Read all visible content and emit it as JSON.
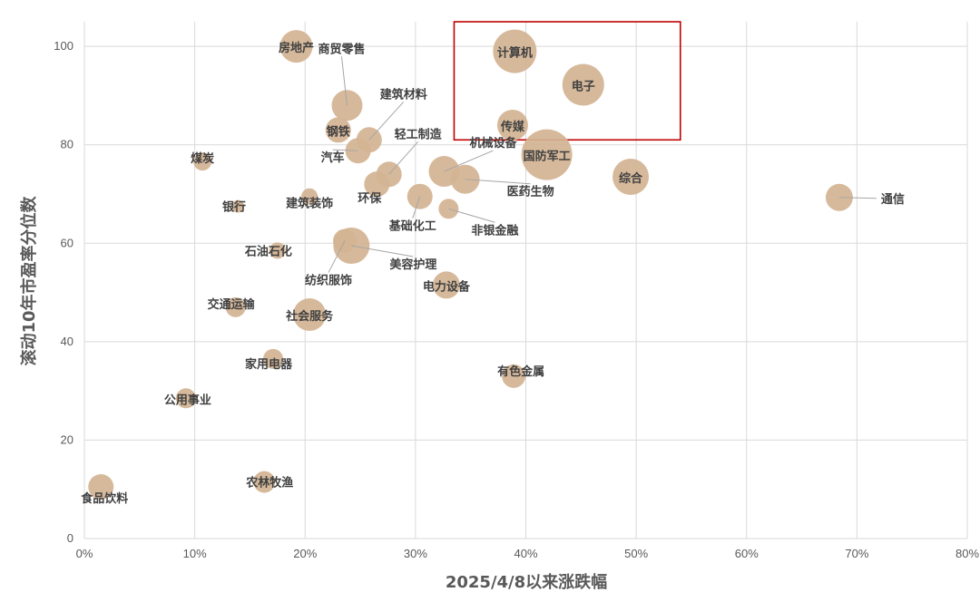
{
  "chart_data": {
    "type": "scatter",
    "xlabel": "2025/4/8以来涨跌幅",
    "ylabel": "滚动10年市盈率分位数",
    "xlim": [
      0,
      80
    ],
    "ylim": [
      0,
      105
    ],
    "xticks": [
      0,
      10,
      20,
      30,
      40,
      50,
      60,
      70,
      80
    ],
    "xtick_labels": [
      "0%",
      "10%",
      "20%",
      "30%",
      "40%",
      "50%",
      "60%",
      "70%",
      "80%"
    ],
    "yticks": [
      0,
      20,
      40,
      60,
      80,
      100
    ],
    "ytick_labels": [
      "0",
      "20",
      "40",
      "60",
      "80",
      "100"
    ],
    "grid": true,
    "highlight_box": {
      "x": [
        33.5,
        54
      ],
      "y": [
        81,
        105
      ],
      "color": "#c00000"
    },
    "points": [
      {
        "name": "计算机",
        "x": 39.0,
        "y": 99.0,
        "r": 24
      },
      {
        "name": "电子",
        "x": 45.2,
        "y": 92.2,
        "r": 23
      },
      {
        "name": "传媒",
        "x": 38.8,
        "y": 84.0,
        "r": 17
      },
      {
        "name": "国防军工",
        "x": 41.9,
        "y": 78.0,
        "r": 28
      },
      {
        "name": "综合",
        "x": 49.5,
        "y": 73.5,
        "r": 20
      },
      {
        "name": "通信",
        "x": 68.4,
        "y": 69.3,
        "r": 15
      },
      {
        "name": "房地产",
        "x": 19.2,
        "y": 100.0,
        "r": 18
      },
      {
        "name": "商贸零售",
        "x": 23.8,
        "y": 88.0,
        "r": 17
      },
      {
        "name": "钢铁",
        "x": 23.0,
        "y": 83.0,
        "r": 14
      },
      {
        "name": "建筑材料",
        "x": 25.8,
        "y": 81.0,
        "r": 14
      },
      {
        "name": "汽车",
        "x": 24.8,
        "y": 78.8,
        "r": 14
      },
      {
        "name": "轻工制造",
        "x": 27.6,
        "y": 74.0,
        "r": 14
      },
      {
        "name": "环保",
        "x": 26.5,
        "y": 72.0,
        "r": 14
      },
      {
        "name": "机械设备",
        "x": 32.6,
        "y": 74.6,
        "r": 17
      },
      {
        "name": "医药生物",
        "x": 34.5,
        "y": 73.0,
        "r": 16
      },
      {
        "name": "基础化工",
        "x": 30.4,
        "y": 69.5,
        "r": 14
      },
      {
        "name": "非银金融",
        "x": 33.0,
        "y": 67.0,
        "r": 11
      },
      {
        "name": "煤炭",
        "x": 10.7,
        "y": 76.6,
        "r": 10
      },
      {
        "name": "银行",
        "x": 13.9,
        "y": 67.5,
        "r": 7
      },
      {
        "name": "建筑装饰",
        "x": 20.4,
        "y": 69.5,
        "r": 9
      },
      {
        "name": "石油石化",
        "x": 17.5,
        "y": 58.5,
        "r": 9
      },
      {
        "name": "纺织服饰",
        "x": 23.6,
        "y": 60.5,
        "r": 13
      },
      {
        "name": "美容护理",
        "x": 24.2,
        "y": 59.5,
        "r": 20
      },
      {
        "name": "电力设备",
        "x": 32.8,
        "y": 51.5,
        "r": 15
      },
      {
        "name": "交通运输",
        "x": 13.7,
        "y": 47.0,
        "r": 11
      },
      {
        "name": "社会服务",
        "x": 20.4,
        "y": 45.5,
        "r": 18
      },
      {
        "name": "家用电器",
        "x": 17.1,
        "y": 36.5,
        "r": 11
      },
      {
        "name": "有色金属",
        "x": 38.9,
        "y": 33.0,
        "r": 13
      },
      {
        "name": "公用事业",
        "x": 9.2,
        "y": 28.5,
        "r": 11
      },
      {
        "name": "食品饮料",
        "x": 1.5,
        "y": 10.5,
        "r": 14
      },
      {
        "name": "农林牧渔",
        "x": 16.3,
        "y": 11.5,
        "r": 12
      }
    ]
  }
}
